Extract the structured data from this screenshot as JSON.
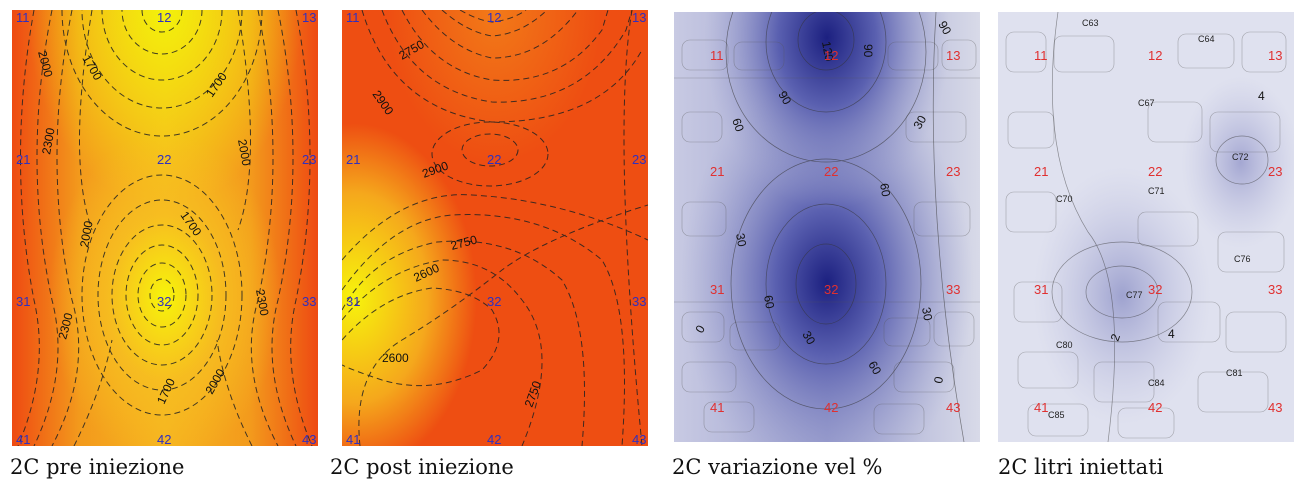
{
  "panels": [
    {
      "caption": "2C pre iniezione",
      "point_labels": [
        "11",
        "12",
        "13",
        "21",
        "22",
        "23",
        "31",
        "32",
        "33",
        "41",
        "42",
        "43"
      ],
      "contour_labels": [
        "2000",
        "1700",
        "1700",
        "2300",
        "2000",
        "1700",
        "2000",
        "2300",
        "2300",
        "1700",
        "2000",
        "2300"
      ]
    },
    {
      "caption": "2C post iniezione",
      "point_labels": [
        "11",
        "12",
        "13",
        "21",
        "22",
        "23",
        "31",
        "32",
        "33",
        "41",
        "42",
        "43"
      ],
      "contour_labels": [
        "2750",
        "2900",
        "2900",
        "2750",
        "2600",
        "2600",
        "2750"
      ]
    },
    {
      "caption": "2C variazione vel %",
      "point_labels": [
        "11",
        "12",
        "13",
        "21",
        "22",
        "23",
        "31",
        "32",
        "33",
        "41",
        "42",
        "43"
      ],
      "contour_labels": [
        "90",
        "90",
        "120",
        "90",
        "60",
        "30",
        "60",
        "30",
        "60",
        "30",
        "0",
        "30",
        "60",
        "0"
      ]
    },
    {
      "caption": "2C litri iniettati",
      "point_labels": [
        "11",
        "12",
        "13",
        "21",
        "22",
        "23",
        "31",
        "32",
        "33",
        "41",
        "42",
        "43"
      ],
      "cell_labels": [
        "C63",
        "C64",
        "C67",
        "C72",
        "C70",
        "C71",
        "C76",
        "C77",
        "C80",
        "C84",
        "C81",
        "C85"
      ],
      "contour_labels": [
        "4",
        "2",
        "4"
      ]
    }
  ],
  "colors": {
    "warm_high": "#f0f000",
    "warm_low": "#f04a10",
    "cool_dark": "#1a1f80",
    "cool_light": "#e4e6f2",
    "point_blue": "#3030c0",
    "point_red": "#e03030"
  }
}
